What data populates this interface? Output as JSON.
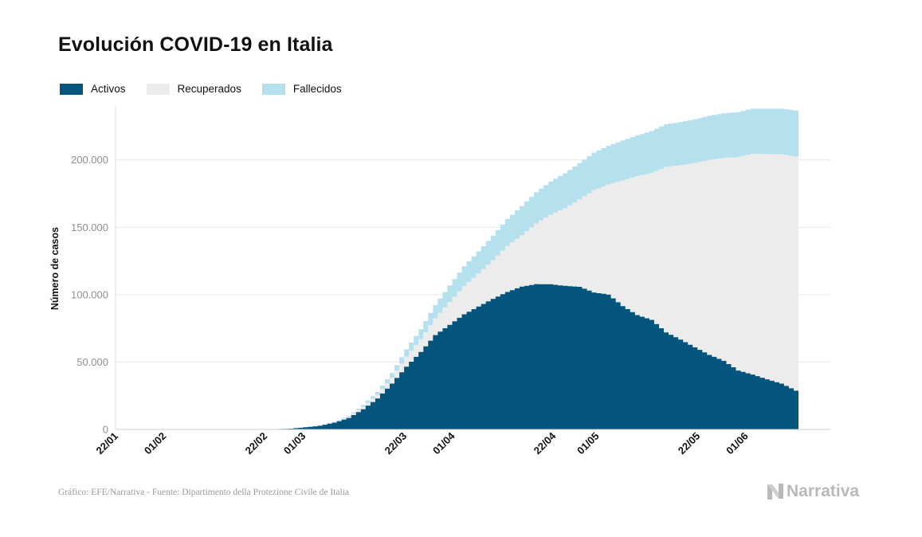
{
  "title": "Evolución COVID-19 en Italia",
  "legend": [
    {
      "label": "Activos",
      "color": "#03557e"
    },
    {
      "label": "Recuperados",
      "color": "#ececec"
    },
    {
      "label": "Fallecidos",
      "color": "#b5e0ed"
    }
  ],
  "footer": {
    "source": "Gráfico: EFE/Narrativa - Fuente: Dipartimento della Protezione Civile de Italia",
    "brand": "Narrativa"
  },
  "chart_data": {
    "type": "area",
    "stacked": true,
    "title": "Evolución COVID-19 en Italia",
    "ylabel": "Número de casos",
    "xlabel": "",
    "ylim": [
      0,
      240000
    ],
    "yticks": [
      0,
      50000,
      100000,
      150000,
      200000
    ],
    "ytick_labels": [
      "0",
      "50.000",
      "100.000",
      "150.000",
      "200.000"
    ],
    "xtick_labels": [
      "22/01",
      "01/02",
      "22/02",
      "01/03",
      "22/03",
      "01/04",
      "22/04",
      "01/05",
      "22/05",
      "01/06"
    ],
    "x_start": "2020-01-22",
    "x_end": "2020-06-12",
    "grid": true,
    "legend_position": "top-left",
    "series_order": [
      "Activos",
      "Recuperados",
      "Fallecidos"
    ],
    "x": [
      "2020-02-21",
      "2020-02-24",
      "2020-02-27",
      "2020-03-01",
      "2020-03-04",
      "2020-03-07",
      "2020-03-10",
      "2020-03-13",
      "2020-03-16",
      "2020-03-19",
      "2020-03-22",
      "2020-03-25",
      "2020-03-28",
      "2020-03-31",
      "2020-04-03",
      "2020-04-06",
      "2020-04-09",
      "2020-04-12",
      "2020-04-15",
      "2020-04-18",
      "2020-04-21",
      "2020-04-24",
      "2020-04-27",
      "2020-04-30",
      "2020-05-03",
      "2020-05-06",
      "2020-05-09",
      "2020-05-12",
      "2020-05-15",
      "2020-05-18",
      "2020-05-21",
      "2020-05-24",
      "2020-05-27",
      "2020-05-30",
      "2020-06-02",
      "2020-06-05",
      "2020-06-08",
      "2020-06-12"
    ],
    "series": [
      {
        "name": "Activos",
        "values": [
          20,
          200,
          600,
          1600,
          2700,
          5000,
          8500,
          15000,
          23000,
          34000,
          46600,
          57500,
          70000,
          77600,
          85400,
          91200,
          96900,
          102000,
          106000,
          107800,
          107700,
          106500,
          105800,
          101600,
          100100,
          91500,
          84800,
          81300,
          72000,
          66600,
          60900,
          55300,
          50900,
          43700,
          40700,
          37200,
          34000,
          27000
        ]
      },
      {
        "name": "Recuperados",
        "values": [
          0,
          0,
          50,
          100,
          300,
          600,
          1000,
          1800,
          2700,
          4400,
          7400,
          9400,
          12400,
          16800,
          20900,
          24400,
          28500,
          34200,
          38100,
          45000,
          51600,
          57600,
          64900,
          75900,
          81600,
          93200,
          103000,
          109000,
          122800,
          129400,
          136700,
          144700,
          150600,
          158400,
          163800,
          167100,
          170100,
          175000
        ]
      },
      {
        "name": "Fallecidos",
        "values": [
          0,
          5,
          20,
          50,
          100,
          230,
          630,
          1270,
          2160,
          3400,
          5480,
          7500,
          10000,
          12400,
          14700,
          16500,
          18300,
          19900,
          21600,
          23200,
          24600,
          25900,
          26900,
          27900,
          28700,
          29700,
          30400,
          31100,
          31600,
          32000,
          32500,
          32800,
          33100,
          33300,
          33500,
          33700,
          33900,
          34200
        ]
      }
    ]
  }
}
